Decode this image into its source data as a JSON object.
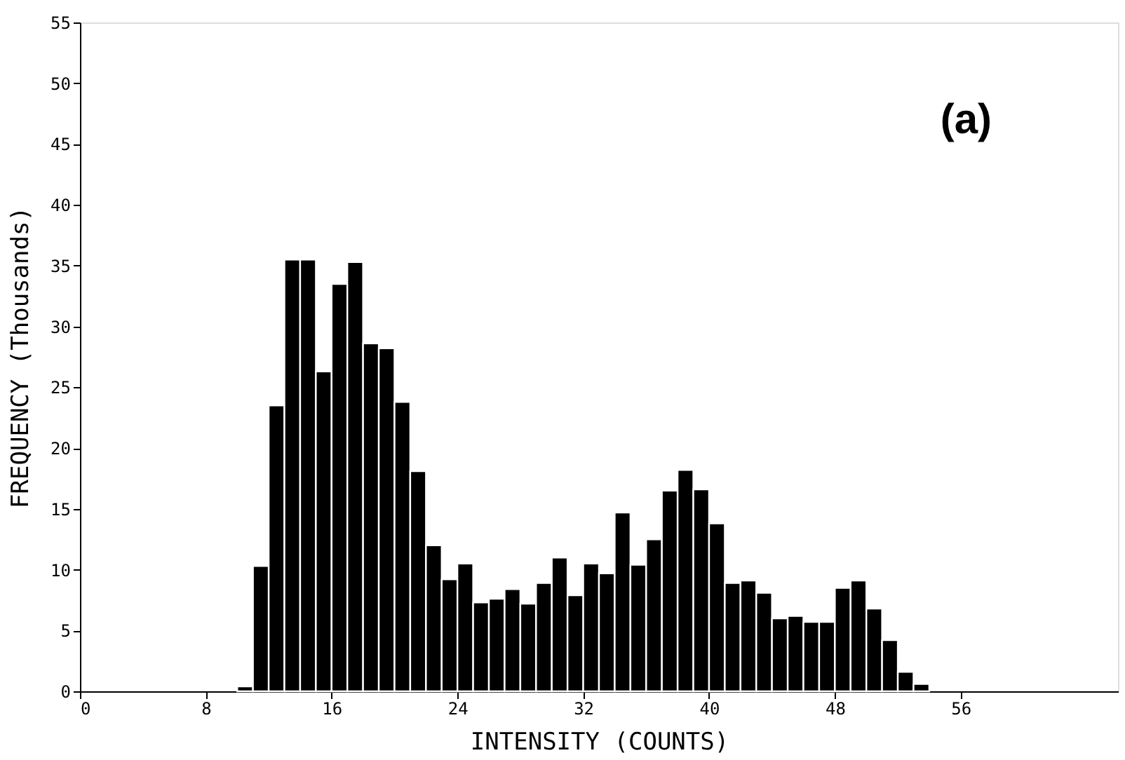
{
  "chart_data": {
    "type": "histogram",
    "xlabel": "INTENSITY (COUNTS)",
    "ylabel": "FREQUENCY (Thousands)",
    "annotations": [
      "(a)"
    ],
    "bins": [
      10,
      11,
      12,
      13,
      14,
      15,
      16,
      17,
      18,
      19,
      20,
      21,
      22,
      23,
      24,
      25,
      26,
      27,
      28,
      29,
      30,
      31,
      32,
      33,
      34,
      35,
      36,
      37,
      38,
      39,
      40,
      41,
      42,
      43,
      44,
      45,
      46,
      47,
      48,
      49,
      50,
      51,
      52,
      53,
      54
    ],
    "values": [
      0.4,
      10.3,
      23.5,
      35.5,
      35.5,
      26.3,
      33.5,
      35.3,
      28.6,
      28.2,
      23.8,
      18.1,
      12.0,
      9.2,
      10.5,
      7.3,
      7.6,
      8.4,
      7.2,
      8.9,
      11.0,
      7.9,
      10.5,
      9.7,
      14.7,
      10.4,
      12.5,
      16.5,
      18.2,
      16.6,
      13.8,
      8.9,
      9.1,
      8.1,
      6.0,
      6.2,
      5.7,
      5.7,
      8.5,
      9.1,
      6.8,
      4.2,
      1.6,
      0.6
    ],
    "color": "#000000",
    "xlim": [
      0,
      66
    ],
    "xticks": [
      0,
      8,
      16,
      24,
      32,
      40,
      48,
      56
    ],
    "ylim": [
      0,
      55
    ],
    "yticks": [
      0,
      5,
      10,
      15,
      20,
      25,
      30,
      35,
      40,
      45,
      50,
      55
    ],
    "grid": false
  }
}
